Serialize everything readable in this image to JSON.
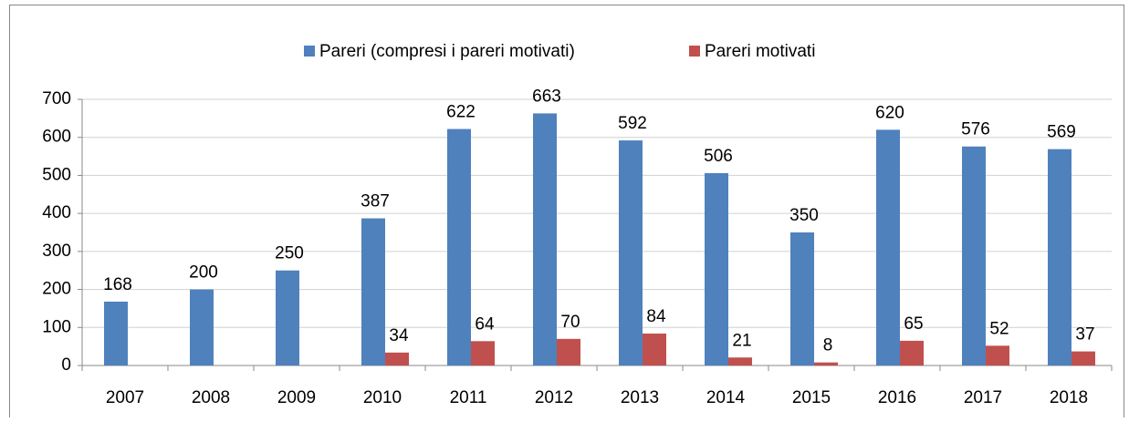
{
  "chart_data": {
    "type": "bar",
    "categories": [
      "2007",
      "2008",
      "2009",
      "2010",
      "2011",
      "2012",
      "2013",
      "2014",
      "2015",
      "2016",
      "2017",
      "2018"
    ],
    "series": [
      {
        "name": "Pareri (compresi i pareri motivati)",
        "color": "#4f81bd",
        "values": [
          168,
          200,
          250,
          387,
          622,
          663,
          592,
          506,
          350,
          620,
          576,
          569
        ]
      },
      {
        "name": "Pareri motivati",
        "color": "#c0504d",
        "values": [
          null,
          null,
          null,
          34,
          64,
          70,
          84,
          21,
          8,
          65,
          52,
          37
        ]
      }
    ],
    "ylim": [
      0,
      700
    ],
    "yticks": [
      0,
      100,
      200,
      300,
      400,
      500,
      600,
      700
    ],
    "grid": true,
    "legend": "top"
  }
}
